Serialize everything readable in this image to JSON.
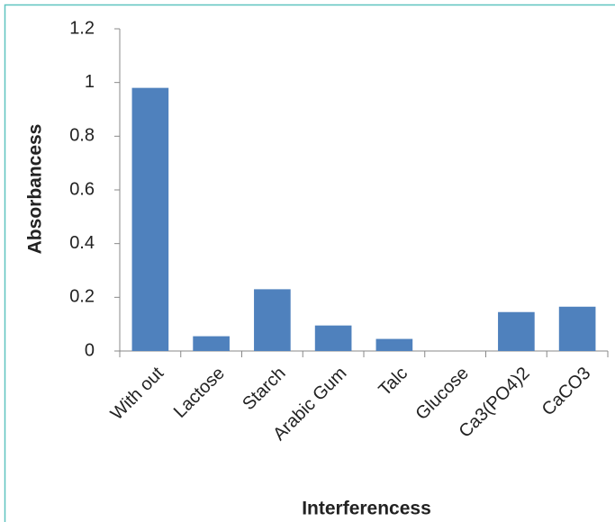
{
  "chart_data": {
    "type": "bar",
    "categories": [
      "With out",
      "Lactose",
      "Starch",
      "Arabic Gum",
      "Talc",
      "Glucose",
      "Ca3(PO4)2",
      "CaCO3"
    ],
    "values": [
      0.98,
      0.055,
      0.23,
      0.095,
      0.045,
      0,
      0.145,
      0.165
    ],
    "color": "#4f81bd",
    "ylim": [
      0,
      1.2
    ],
    "yticks": [
      0,
      0.2,
      0.4,
      0.6,
      0.8,
      1,
      1.2
    ],
    "y_label": "Absorbancess",
    "x_label": "Interferencess",
    "grid": false
  }
}
